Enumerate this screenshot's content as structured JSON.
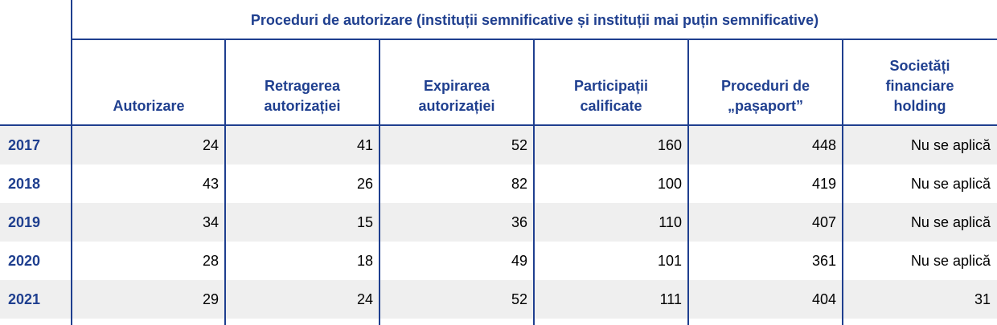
{
  "table": {
    "group_header": "Proceduri de autorizare (instituții semnificative și instituții mai puțin semnificative)",
    "columns": [
      "Autorizare",
      "Retragerea autorizației",
      "Expirarea autorizației",
      "Participații calificate",
      "Proceduri de „pașaport”",
      "Societăți financiare holding"
    ],
    "rows": [
      {
        "year": "2017",
        "values": [
          "24",
          "41",
          "52",
          "160",
          "448",
          "Nu se aplică"
        ]
      },
      {
        "year": "2018",
        "values": [
          "43",
          "26",
          "82",
          "100",
          "419",
          "Nu se aplică"
        ]
      },
      {
        "year": "2019",
        "values": [
          "34",
          "15",
          "36",
          "110",
          "407",
          "Nu se aplică"
        ]
      },
      {
        "year": "2020",
        "values": [
          "28",
          "18",
          "49",
          "101",
          "361",
          "Nu se aplică"
        ]
      },
      {
        "year": "2021",
        "values": [
          "29",
          "24",
          "52",
          "111",
          "404",
          "31"
        ]
      }
    ]
  },
  "colors": {
    "header_text": "#1f3f8f",
    "rule": "#1f3f8f",
    "shade": "#efefef"
  }
}
